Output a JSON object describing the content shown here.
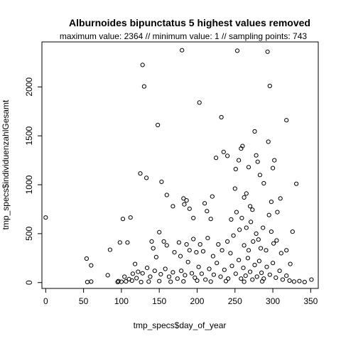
{
  "chart_data": {
    "type": "scatter",
    "title": "Alburnoides bipunctatus  5 highest values removed",
    "subtitle": "maximum value: 2364  //  minimum value: 1  // sampling points: 743",
    "xlabel": "tmp_specs$day_of_year",
    "ylabel": "tmp_specs$individuenzahlGesamt",
    "xlim": [
      -5,
      360
    ],
    "ylim": [
      -60,
      2460
    ],
    "xticks": [
      0,
      50,
      100,
      150,
      200,
      250,
      300,
      350
    ],
    "yticks": [
      0,
      500,
      1000,
      1500,
      2000
    ],
    "grid": false,
    "points": [
      [
        0,
        665
      ],
      [
        54,
        245
      ],
      [
        60,
        175
      ],
      [
        55,
        5
      ],
      [
        60,
        10
      ],
      [
        82,
        75
      ],
      [
        85,
        335
      ],
      [
        95,
        5
      ],
      [
        98,
        410
      ],
      [
        102,
        650
      ],
      [
        108,
        410
      ],
      [
        112,
        665
      ],
      [
        118,
        190
      ],
      [
        115,
        90
      ],
      [
        125,
        1115
      ],
      [
        128,
        2225
      ],
      [
        130,
        2005
      ],
      [
        133,
        1070
      ],
      [
        148,
        1610
      ],
      [
        153,
        1030
      ],
      [
        160,
        895
      ],
      [
        168,
        780
      ],
      [
        180,
        2375
      ],
      [
        182,
        860
      ],
      [
        183,
        800
      ],
      [
        186,
        840
      ],
      [
        190,
        755
      ],
      [
        195,
        660
      ],
      [
        203,
        1840
      ],
      [
        210,
        810
      ],
      [
        213,
        730
      ],
      [
        218,
        650
      ],
      [
        220,
        880
      ],
      [
        225,
        1275
      ],
      [
        232,
        1690
      ],
      [
        235,
        1335
      ],
      [
        240,
        1295
      ],
      [
        245,
        645
      ],
      [
        250,
        960
      ],
      [
        251,
        1160
      ],
      [
        253,
        2370
      ],
      [
        255,
        1250
      ],
      [
        258,
        1370
      ],
      [
        260,
        1395
      ],
      [
        262,
        870
      ],
      [
        265,
        910
      ],
      [
        268,
        1180
      ],
      [
        270,
        780
      ],
      [
        273,
        745
      ],
      [
        276,
        1545
      ],
      [
        278,
        1300
      ],
      [
        280,
        1235
      ],
      [
        283,
        1100
      ],
      [
        288,
        1015
      ],
      [
        293,
        2360
      ],
      [
        294,
        1440
      ],
      [
        296,
        2010
      ],
      [
        298,
        825
      ],
      [
        300,
        1170
      ],
      [
        302,
        1250
      ],
      [
        306,
        720
      ],
      [
        310,
        860
      ],
      [
        318,
        1660
      ],
      [
        326,
        520
      ],
      [
        331,
        1010
      ],
      [
        351,
        30
      ],
      [
        140,
        420
      ],
      [
        142,
        350
      ],
      [
        146,
        260
      ],
      [
        150,
        515
      ],
      [
        156,
        420
      ],
      [
        160,
        380
      ],
      [
        170,
        310
      ],
      [
        176,
        410
      ],
      [
        178,
        270
      ],
      [
        186,
        390
      ],
      [
        190,
        330
      ],
      [
        195,
        445
      ],
      [
        199,
        310
      ],
      [
        204,
        390
      ],
      [
        208,
        320
      ],
      [
        214,
        455
      ],
      [
        221,
        270
      ],
      [
        228,
        390
      ],
      [
        233,
        330
      ],
      [
        240,
        420
      ],
      [
        244,
        300
      ],
      [
        248,
        480
      ],
      [
        252,
        720
      ],
      [
        256,
        540
      ],
      [
        259,
        660
      ],
      [
        262,
        380
      ],
      [
        265,
        560
      ],
      [
        268,
        330
      ],
      [
        271,
        620
      ],
      [
        274,
        420
      ],
      [
        278,
        500
      ],
      [
        281,
        440
      ],
      [
        284,
        350
      ],
      [
        287,
        560
      ],
      [
        291,
        330
      ],
      [
        295,
        690
      ],
      [
        298,
        520
      ],
      [
        301,
        400
      ],
      [
        305,
        430
      ],
      [
        311,
        300
      ],
      [
        318,
        330
      ],
      [
        323,
        190
      ],
      [
        104,
        60
      ],
      [
        110,
        35
      ],
      [
        120,
        45
      ],
      [
        122,
        110
      ],
      [
        128,
        95
      ],
      [
        134,
        150
      ],
      [
        138,
        60
      ],
      [
        144,
        120
      ],
      [
        152,
        85
      ],
      [
        158,
        140
      ],
      [
        163,
        60
      ],
      [
        168,
        105
      ],
      [
        174,
        40
      ],
      [
        179,
        120
      ],
      [
        184,
        75
      ],
      [
        188,
        210
      ],
      [
        193,
        95
      ],
      [
        197,
        50
      ],
      [
        202,
        160
      ],
      [
        206,
        90
      ],
      [
        211,
        30
      ],
      [
        216,
        140
      ],
      [
        222,
        80
      ],
      [
        226,
        200
      ],
      [
        231,
        60
      ],
      [
        236,
        130
      ],
      [
        241,
        40
      ],
      [
        246,
        170
      ],
      [
        251,
        90
      ],
      [
        255,
        230
      ],
      [
        258,
        40
      ],
      [
        261,
        150
      ],
      [
        264,
        70
      ],
      [
        267,
        250
      ],
      [
        270,
        110
      ],
      [
        273,
        30
      ],
      [
        276,
        180
      ],
      [
        279,
        60
      ],
      [
        282,
        220
      ],
      [
        285,
        100
      ],
      [
        288,
        40
      ],
      [
        292,
        160
      ],
      [
        296,
        80
      ],
      [
        300,
        200
      ],
      [
        304,
        50
      ],
      [
        309,
        120
      ],
      [
        313,
        30
      ],
      [
        318,
        70
      ],
      [
        322,
        20
      ],
      [
        328,
        10
      ],
      [
        335,
        15
      ],
      [
        342,
        5
      ],
      [
        96,
        15
      ],
      [
        100,
        8
      ],
      [
        106,
        12
      ],
      [
        114,
        20
      ],
      [
        126,
        5
      ],
      [
        136,
        10
      ],
      [
        150,
        15
      ],
      [
        165,
        8
      ],
      [
        182,
        12
      ],
      [
        200,
        20
      ],
      [
        218,
        10
      ],
      [
        238,
        15
      ],
      [
        262,
        8
      ],
      [
        286,
        12
      ]
    ]
  }
}
